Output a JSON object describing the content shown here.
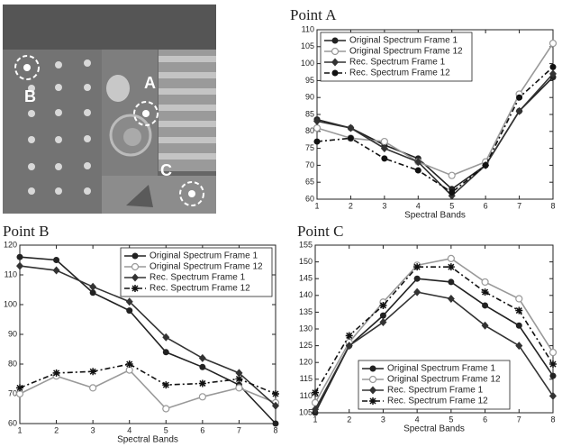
{
  "image": {
    "labels": [
      "A",
      "B",
      "C"
    ]
  },
  "chart_data": [
    {
      "type": "line",
      "title": "Point A",
      "x_label": "Spectral Bands",
      "x": [
        1,
        2,
        3,
        4,
        5,
        6,
        7,
        8
      ],
      "xlim": [
        1,
        8
      ],
      "xticks": [
        1,
        2,
        3,
        4,
        5,
        6,
        7,
        8
      ],
      "ylim": [
        60,
        110
      ],
      "yticks": [
        60,
        65,
        70,
        75,
        80,
        85,
        90,
        95,
        100,
        105,
        110
      ],
      "legend": "upper left",
      "series": [
        {
          "name": "Original Spectrum Frame 1",
          "color": "#222222",
          "marker": "circle",
          "dash": "solid",
          "values": [
            83.5,
            81,
            76,
            72,
            63,
            70,
            86,
            96
          ]
        },
        {
          "name": "Original Spectrum Frame 12",
          "color": "#999999",
          "marker": "open-circle",
          "dash": "solid",
          "values": [
            81,
            78,
            77,
            71,
            67,
            71,
            91,
            106
          ]
        },
        {
          "name": "Rec. Spectrum Frame 1",
          "color": "#333333",
          "marker": "diamond",
          "dash": "solid",
          "values": [
            83,
            81,
            75,
            71,
            61,
            70,
            86,
            97
          ]
        },
        {
          "name": "Rec. Spectrum Frame 12",
          "color": "#111111",
          "marker": "circle",
          "dash": "dash-dot",
          "values": [
            77,
            78,
            72,
            68.5,
            62,
            70,
            90,
            99
          ]
        }
      ]
    },
    {
      "type": "line",
      "title": "Point B",
      "x_label": "Spectral Bands",
      "x": [
        1,
        2,
        3,
        4,
        5,
        6,
        7,
        8
      ],
      "xlim": [
        1,
        8
      ],
      "xticks": [
        1,
        2,
        3,
        4,
        5,
        6,
        7,
        8
      ],
      "ylim": [
        60,
        120
      ],
      "yticks": [
        60,
        70,
        80,
        90,
        100,
        110,
        120
      ],
      "legend": "upper right",
      "series": [
        {
          "name": "Original Spectrum Frame 1",
          "color": "#222222",
          "marker": "circle",
          "dash": "solid",
          "values": [
            116,
            115,
            104,
            98,
            84,
            79,
            73,
            60
          ]
        },
        {
          "name": "Original Spectrum Frame 12",
          "color": "#999999",
          "marker": "open-circle",
          "dash": "solid",
          "values": [
            70,
            76,
            72,
            78,
            65,
            69,
            72,
            67
          ]
        },
        {
          "name": "Rec. Spectrum Frame 1",
          "color": "#333333",
          "marker": "diamond",
          "dash": "solid",
          "values": [
            113,
            111.5,
            106,
            101,
            89,
            82,
            77,
            66
          ]
        },
        {
          "name": "Rec. Spectrum Frame 12",
          "color": "#111111",
          "marker": "star",
          "dash": "dash-dot",
          "values": [
            72,
            77,
            77.5,
            80,
            73,
            73.5,
            75,
            70
          ]
        }
      ]
    },
    {
      "type": "line",
      "title": "Point C",
      "x_label": "Spectral Bands",
      "x": [
        1,
        2,
        3,
        4,
        5,
        6,
        7,
        8
      ],
      "xlim": [
        1,
        8
      ],
      "xticks": [
        1,
        2,
        3,
        4,
        5,
        6,
        7,
        8
      ],
      "ylim": [
        105,
        155
      ],
      "yticks": [
        105,
        110,
        115,
        120,
        125,
        130,
        135,
        140,
        145,
        150,
        155
      ],
      "legend": "lower center",
      "series": [
        {
          "name": "Original Spectrum Frame 1",
          "color": "#222222",
          "marker": "circle",
          "dash": "solid",
          "values": [
            105,
            125,
            134,
            145,
            144,
            137,
            131,
            116
          ]
        },
        {
          "name": "Original Spectrum Frame 12",
          "color": "#999999",
          "marker": "open-circle",
          "dash": "solid",
          "values": [
            108,
            126,
            138,
            149,
            151,
            144,
            139,
            123
          ]
        },
        {
          "name": "Rec. Spectrum Frame 1",
          "color": "#333333",
          "marker": "diamond",
          "dash": "solid",
          "values": [
            106,
            125,
            132,
            141,
            139,
            131,
            125,
            110
          ]
        },
        {
          "name": "Rec. Spectrum Frame 12",
          "color": "#111111",
          "marker": "star",
          "dash": "dash-dot",
          "values": [
            111,
            128,
            137,
            148.5,
            148.5,
            141,
            135.5,
            119.5
          ]
        }
      ]
    }
  ]
}
